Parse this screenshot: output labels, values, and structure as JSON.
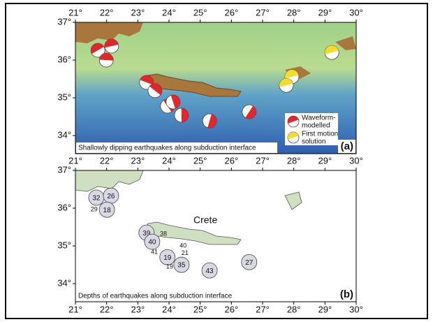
{
  "panels": [
    {
      "caption": "Shallowly dipping earthquakes along subduction interface",
      "letter": "(a)",
      "xlim": [
        21,
        30
      ],
      "ylim": [
        33.52,
        37
      ],
      "xticks": [
        {
          "value": 21,
          "label": "21°"
        },
        {
          "value": 22,
          "label": "22°"
        },
        {
          "value": 23,
          "label": "23°"
        },
        {
          "value": 24,
          "label": "24°"
        },
        {
          "value": 25,
          "label": "25°"
        },
        {
          "value": 26,
          "label": "26°"
        },
        {
          "value": 27,
          "label": "27°"
        },
        {
          "value": 28,
          "label": "28°"
        },
        {
          "value": 29,
          "label": "29°"
        },
        {
          "value": 30,
          "label": "30°"
        }
      ],
      "yticks": [
        {
          "value": 34,
          "label": "34°"
        },
        {
          "value": 35,
          "label": "35°"
        },
        {
          "value": 36,
          "label": "36°"
        },
        {
          "value": 37,
          "label": "37°"
        }
      ],
      "waveform_color": "#e2262c",
      "first_motion_color": "#f3dc2c",
      "waveform_modelled": [
        {
          "lon": 21.72,
          "lat": 36.26
        },
        {
          "lon": 22.16,
          "lat": 36.37
        },
        {
          "lon": 21.99,
          "lat": 36.0
        },
        {
          "lon": 23.28,
          "lat": 35.41
        },
        {
          "lon": 23.55,
          "lat": 35.19
        },
        {
          "lon": 23.95,
          "lat": 34.78
        },
        {
          "lon": 24.13,
          "lat": 34.89
        },
        {
          "lon": 24.4,
          "lat": 34.54
        },
        {
          "lon": 25.3,
          "lat": 34.39
        },
        {
          "lon": 26.57,
          "lat": 34.63
        }
      ],
      "first_motion": [
        {
          "lon": 27.94,
          "lat": 35.56
        },
        {
          "lon": 27.76,
          "lat": 35.33
        },
        {
          "lon": 29.22,
          "lat": 36.2
        }
      ],
      "legend": {
        "waveform": [
          "Waveform-",
          "modelled"
        ],
        "first_motion": [
          "First motion",
          "solution"
        ]
      }
    },
    {
      "caption": "Depths of earthquakes along subduction interface",
      "letter": "(b)",
      "place": "Crete",
      "xlim": [
        21,
        30
      ],
      "ylim": [
        33.52,
        37
      ],
      "xticks": [
        {
          "value": 21,
          "label": "21°"
        },
        {
          "value": 22,
          "label": "22°"
        },
        {
          "value": 23,
          "label": "23°"
        },
        {
          "value": 24,
          "label": "24°"
        },
        {
          "value": 25,
          "label": "25°"
        },
        {
          "value": 26,
          "label": "26°"
        },
        {
          "value": 27,
          "label": "27°"
        },
        {
          "value": 28,
          "label": "28°"
        },
        {
          "value": 29,
          "label": "29°"
        },
        {
          "value": 30,
          "label": "30°"
        }
      ],
      "yticks": [
        {
          "value": 34,
          "label": "34°"
        },
        {
          "value": 35,
          "label": "35°"
        },
        {
          "value": 36,
          "label": "36°"
        },
        {
          "value": 37,
          "label": "37°"
        }
      ],
      "depths": [
        {
          "lon": 21.67,
          "lat": 36.28,
          "depth": 32
        },
        {
          "lon": 22.14,
          "lat": 36.33,
          "depth": 26
        },
        {
          "lon": 22.01,
          "lat": 35.96,
          "depth": 18
        },
        {
          "lon": 23.28,
          "lat": 35.35,
          "depth": 39
        },
        {
          "lon": 23.46,
          "lat": 35.11,
          "depth": 40
        },
        {
          "lon": 23.95,
          "lat": 34.7,
          "depth": 19
        },
        {
          "lon": 24.4,
          "lat": 34.5,
          "depth": 35
        },
        {
          "lon": 25.3,
          "lat": 34.35,
          "depth": 43
        },
        {
          "lon": 26.57,
          "lat": 34.57,
          "depth": 27
        }
      ],
      "small_labels": [
        {
          "lon": 21.6,
          "lat": 35.96,
          "depth": 29
        },
        {
          "lon": 23.82,
          "lat": 35.31,
          "depth": 38
        },
        {
          "lon": 23.53,
          "lat": 34.83,
          "depth": 41
        },
        {
          "lon": 24.45,
          "lat": 35.0,
          "depth": 40
        },
        {
          "lon": 24.51,
          "lat": 34.8,
          "depth": 21
        },
        {
          "lon": 24.02,
          "lat": 34.44,
          "depth": 19
        }
      ]
    }
  ]
}
